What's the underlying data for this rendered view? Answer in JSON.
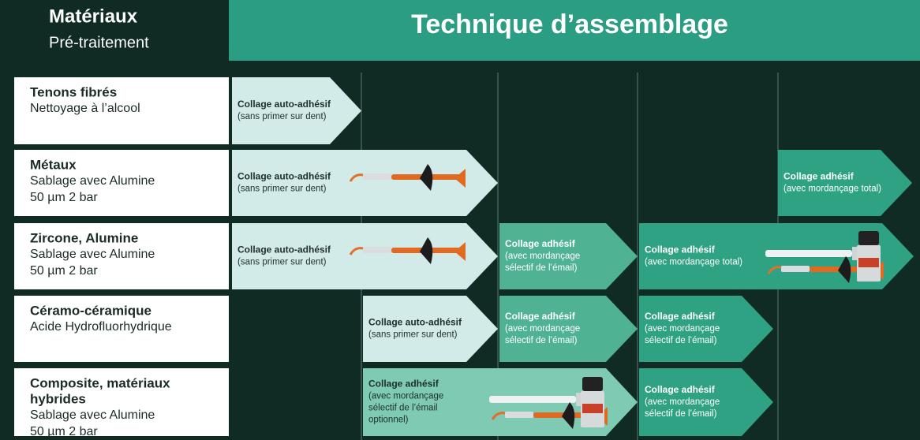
{
  "header": {
    "title": "Matériaux",
    "subtitle": "Pré-traitement"
  },
  "banner": "Technique d’assemblage",
  "rows": [
    {
      "material": [
        "Tenons fibrés"
      ],
      "pretreatment": [
        "Nettoyage à l’alcool"
      ],
      "cells": [
        {
          "title": "Collage auto-adhésif",
          "note": [
            "(sans primer sur dent)"
          ]
        }
      ]
    },
    {
      "material": [
        "Métaux"
      ],
      "pretreatment": [
        "Sablage avec Alumine",
        "50 µm 2 bar"
      ],
      "cells": [
        {
          "title": "Collage auto-adhésif",
          "note": [
            "(sans primer sur dent)"
          ]
        },
        {
          "title": "Collage adhésif",
          "note": [
            "(avec mordançage total)"
          ]
        }
      ]
    },
    {
      "material": [
        "Zircone, Alumine"
      ],
      "pretreatment": [
        "Sablage avec Alumine",
        "50 µm 2 bar"
      ],
      "cells": [
        {
          "title": "Collage auto-adhésif",
          "note": [
            "(sans primer sur dent)"
          ]
        },
        {
          "title": "Collage adhésif",
          "note": [
            "(avec mordançage",
            "sélectif de l’émail)"
          ]
        },
        {
          "title": "Collage adhésif",
          "note": [
            "(avec mordançage total)"
          ]
        }
      ]
    },
    {
      "material": [
        "Céramo-céramique"
      ],
      "pretreatment": [
        "Acide Hydrofluorhydrique"
      ],
      "cells": [
        {
          "title": "Collage auto-adhésif",
          "note": [
            "(sans primer sur dent)"
          ]
        },
        {
          "title": "Collage adhésif",
          "note": [
            "(avec mordançage",
            "sélectif de l’émail)"
          ]
        },
        {
          "title": "Collage adhésif",
          "note": [
            "(avec mordançage",
            "sélectif de l’émail)"
          ]
        }
      ]
    },
    {
      "material": [
        "Composite, matériaux",
        "hybrides"
      ],
      "pretreatment": [
        "Sablage avec Alumine",
        "50 µm 2 bar"
      ],
      "cells": [
        {
          "title": "Collage adhésif",
          "note": [
            "(avec mordançage",
            "sélectif de l’émail",
            "optionnel)"
          ]
        },
        {
          "title": "Collage adhésif",
          "note": [
            "(avec mordançage",
            "sélectif de l’émail)"
          ]
        }
      ]
    }
  ]
}
